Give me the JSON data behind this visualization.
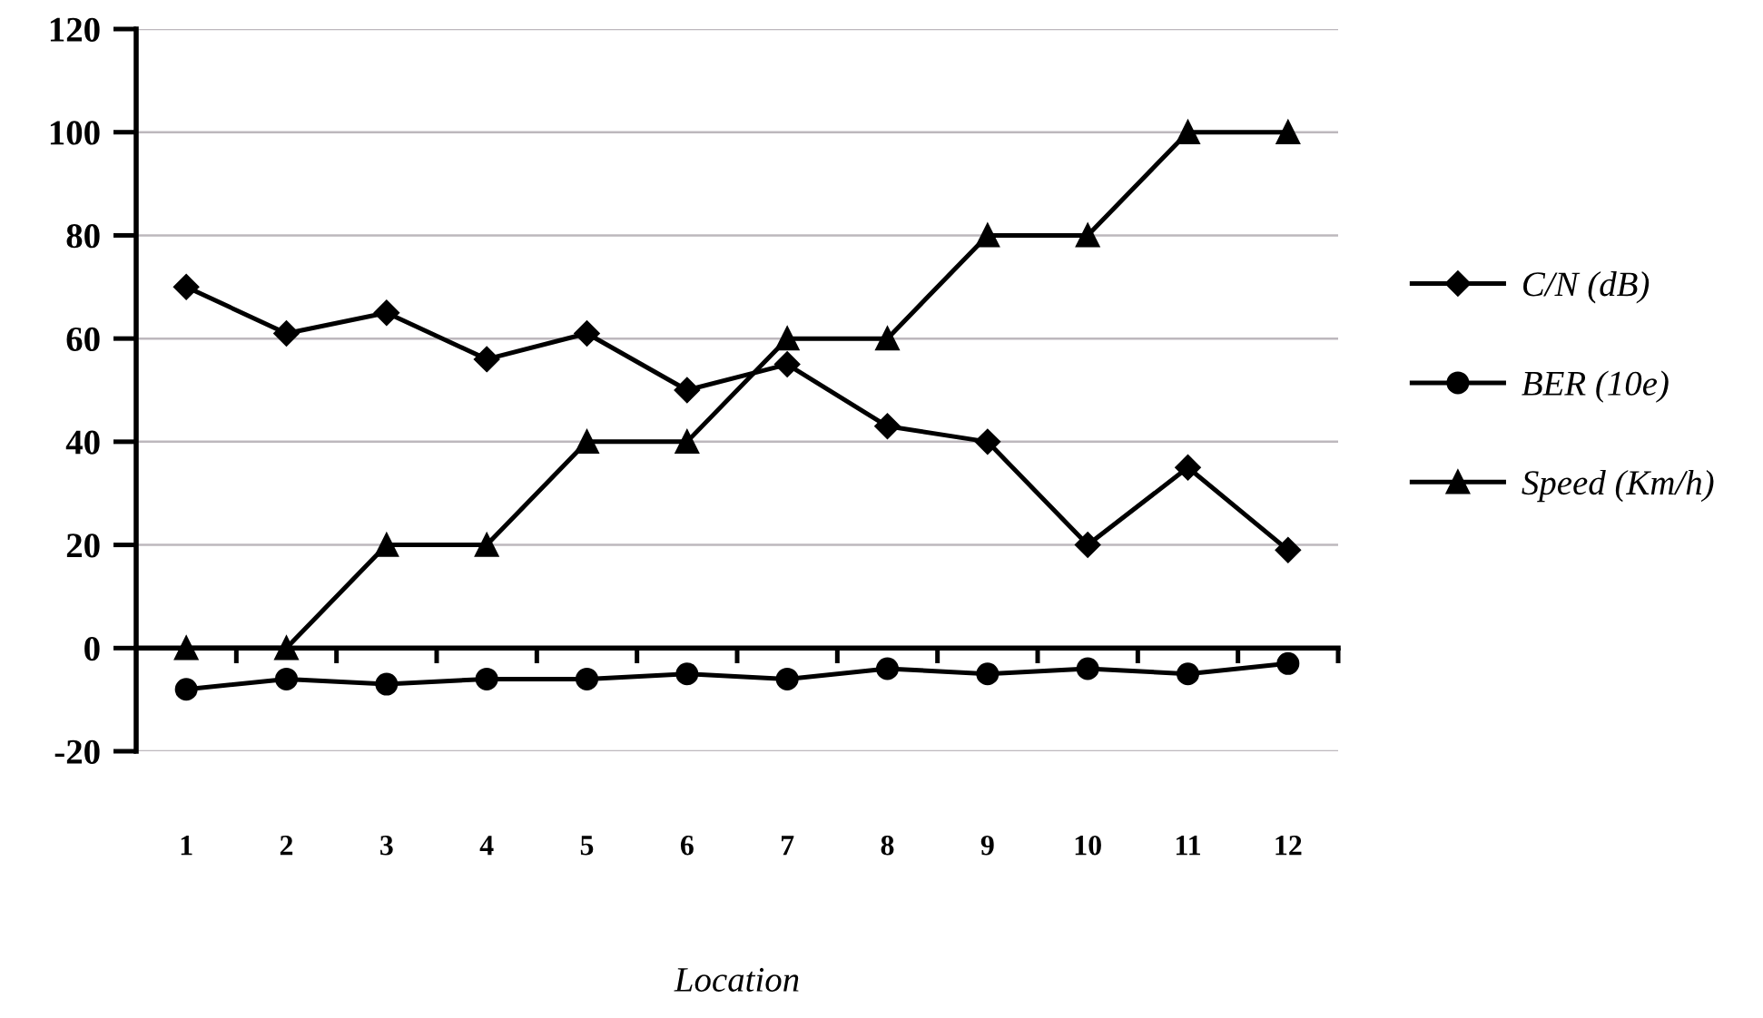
{
  "chart_data": {
    "type": "line",
    "xlabel": "Location",
    "categories": [
      "1",
      "2",
      "3",
      "4",
      "5",
      "6",
      "7",
      "8",
      "9",
      "10",
      "11",
      "12"
    ],
    "series": [
      {
        "name": "C/N (dB)",
        "color": "#000000",
        "marker": "diamond",
        "values": [
          70,
          61,
          65,
          56,
          61,
          50,
          55,
          43,
          40,
          20,
          35,
          19
        ]
      },
      {
        "name": "BER (10e)",
        "color": "#000000",
        "marker": "circle",
        "values": [
          -8,
          -6,
          -7,
          -6,
          -6,
          -5,
          -6,
          -4,
          -5,
          -4,
          -5,
          -3
        ]
      },
      {
        "name": "Speed (Km/h)",
        "color": "#000000",
        "marker": "triangle",
        "values": [
          0,
          0,
          20,
          20,
          40,
          40,
          60,
          60,
          80,
          80,
          100,
          100
        ]
      }
    ],
    "ylim": [
      -20,
      120
    ],
    "yticks": [
      -20,
      0,
      20,
      40,
      60,
      80,
      100,
      120
    ],
    "grid": "y",
    "legend": "right",
    "line_style": "solid"
  }
}
